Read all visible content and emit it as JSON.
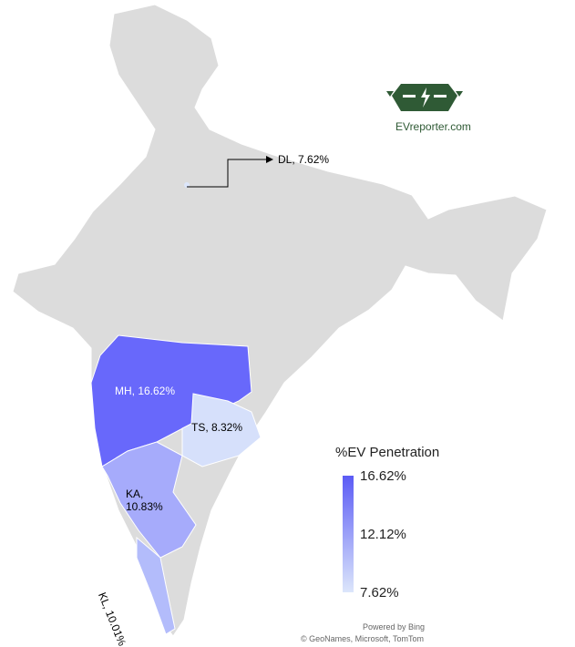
{
  "legend": {
    "title": "%EV Penetration",
    "max": "16.62%",
    "mid": "12.12%",
    "min": "7.62%",
    "color_max": "#5b5bf5",
    "color_min": "#dce6fb"
  },
  "regions": [
    {
      "code": "MH",
      "label": "MH, 16.62%",
      "value": 16.62,
      "color": "#6868fb"
    },
    {
      "code": "TS",
      "label": "TS, 8.32%",
      "value": 8.32,
      "color": "#d6e0fb"
    },
    {
      "code": "KA",
      "label_line1": "KA,",
      "label_line2": "10.83%",
      "value": 10.83,
      "color": "#a6abfb"
    },
    {
      "code": "KL",
      "label": "KL, 10.01%",
      "value": 10.01,
      "color": "#b3bcfb"
    },
    {
      "code": "DL",
      "label": "DL, 7.62%",
      "value": 7.62,
      "color": "#dce6fb"
    }
  ],
  "base_color": "#dcdcdc",
  "logo": {
    "text": "EVreporter.com",
    "color": "#2f5a35"
  },
  "credits": {
    "powered": "Powered by Bing",
    "attribution": "© GeoNames, Microsoft, TomTom"
  }
}
